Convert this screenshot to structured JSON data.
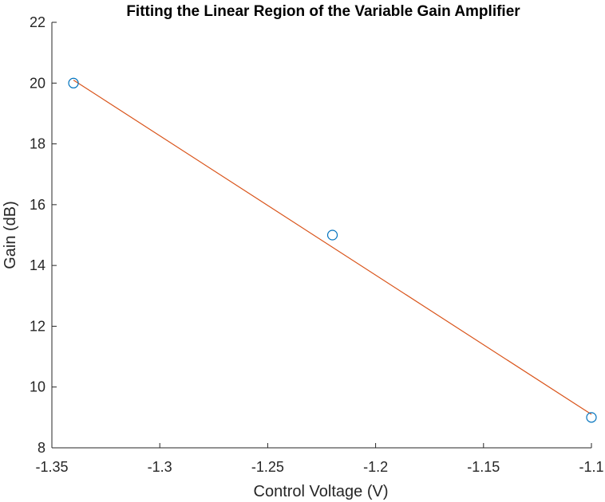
{
  "chart_data": {
    "type": "scatter",
    "title": "Fitting the Linear Region of the Variable Gain Amplifier",
    "xlabel": "Control Voltage (V)",
    "ylabel": "Gain (dB)",
    "xlim": [
      -1.35,
      -1.1
    ],
    "ylim": [
      8,
      22
    ],
    "xticks": [
      -1.35,
      -1.3,
      -1.25,
      -1.2,
      -1.15,
      -1.1
    ],
    "xtick_labels": [
      "-1.35",
      "-1.3",
      "-1.25",
      "-1.2",
      "-1.15",
      "-1.1"
    ],
    "yticks": [
      8,
      10,
      12,
      14,
      16,
      18,
      20,
      22
    ],
    "ytick_labels": [
      "8",
      "10",
      "12",
      "14",
      "16",
      "18",
      "20",
      "22"
    ],
    "grid": false,
    "series": [
      {
        "marker": "circle",
        "color": "#0072BD",
        "x": [
          -1.34,
          -1.22,
          -1.1
        ],
        "y": [
          20,
          15,
          9
        ]
      },
      {
        "marker": "line",
        "color": "#D95319",
        "x": [
          -1.34,
          -1.1
        ],
        "y": [
          20.1,
          9.1
        ]
      }
    ]
  }
}
